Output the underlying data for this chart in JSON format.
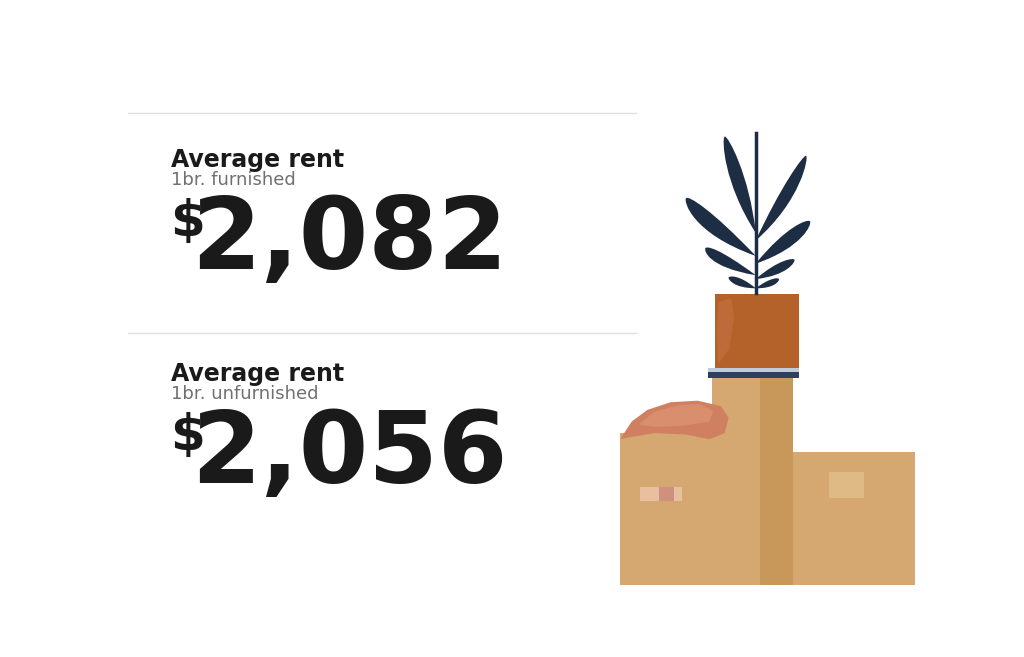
{
  "background_color": "#ffffff",
  "divider_color": "#e0e0e0",
  "section1_label": "Average rent",
  "section1_sublabel": "1br. furnished",
  "section1_value_num": "2,082",
  "section2_label": "Average rent",
  "section2_sublabel": "1br. unfurnished",
  "section2_value_num": "2,056",
  "label_color": "#1a1a1a",
  "sublabel_color": "#707070",
  "value_color": "#1a1a1a",
  "label_fontsize": 17,
  "sublabel_fontsize": 13,
  "value_fontsize": 72,
  "dollar_fontsize": 36,
  "leaf_color": "#1D2D44",
  "pot_color": "#B5622A",
  "pot_highlight": "#A05020",
  "book_color": "#2D4060",
  "book_light": "#C0CCDA",
  "box_main": "#D4A870",
  "box_dark": "#C09050",
  "box_shadow": "#C8985A",
  "box_light": "#E0BA85",
  "hand_color": "#D08060",
  "hand_light": "#E09878",
  "tape_color": "#E8C0A0"
}
